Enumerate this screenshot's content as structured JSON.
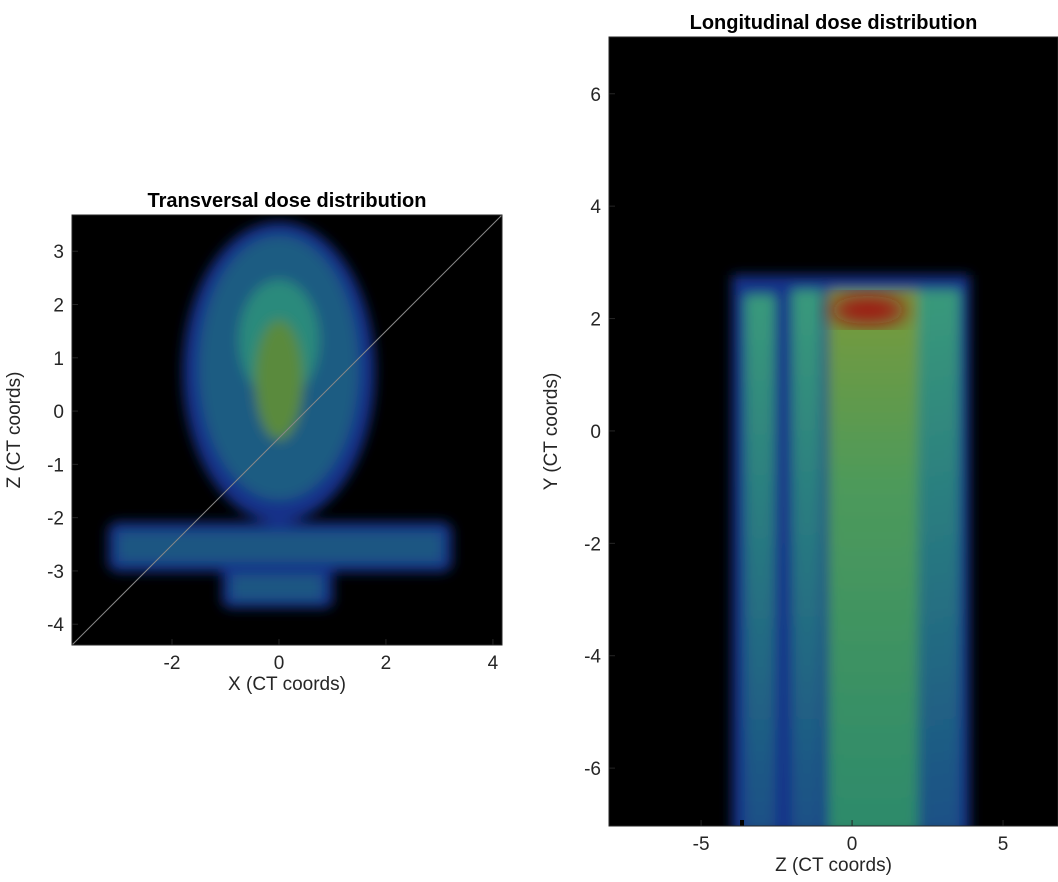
{
  "chart_data": [
    {
      "type": "heatmap",
      "title": "Transversal dose distribution",
      "x_label": "X (CT coords)",
      "y_label": "Z (CT coords)",
      "xlim": [
        -3.87,
        4.17
      ],
      "ylim": [
        -4.39,
        3.68
      ],
      "xticks": [
        -2,
        0,
        2,
        4
      ],
      "yticks": [
        -4,
        -3,
        -2,
        -1,
        0,
        1,
        2,
        3
      ]
    },
    {
      "type": "heatmap",
      "title": "Longitudinal dose distribution",
      "x_label": "Z (CT coords)",
      "y_label": "Y (CT coords)",
      "xlim": [
        -8.05,
        6.82
      ],
      "ylim": [
        -7.03,
        7.01
      ],
      "xticks": [
        -5,
        0,
        5
      ],
      "yticks": [
        -6,
        -4,
        -2,
        0,
        2,
        4,
        6
      ]
    }
  ]
}
